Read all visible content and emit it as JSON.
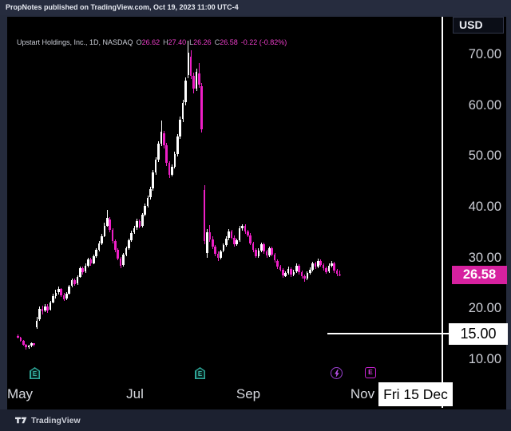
{
  "header": {
    "publish_bar": "PropNotes published on TradingView.com, Oct 19, 2023 11:00 UTC-4"
  },
  "legend": {
    "title": "Upstart Holdings, Inc., 1D, NASDAQ",
    "ohlc": [
      {
        "k": "O",
        "v": "26.62"
      },
      {
        "k": "H",
        "v": "27.40"
      },
      {
        "k": "L",
        "v": "26.26"
      },
      {
        "k": "C",
        "v": "26.58"
      }
    ],
    "change": "-0.22 (-0.82%)"
  },
  "price_axis": {
    "currency": "USD",
    "ticks": [
      {
        "label": "70.00",
        "price": 70
      },
      {
        "label": "60.00",
        "price": 60
      },
      {
        "label": "50.00",
        "price": 50
      },
      {
        "label": "40.00",
        "price": 40
      },
      {
        "label": "30.00",
        "price": 30
      },
      {
        "label": "20.00",
        "price": 20
      },
      {
        "label": "10.00",
        "price": 10
      }
    ],
    "last_price_badge": {
      "label": "26.58",
      "price": 26.58
    },
    "target_badge": {
      "label": "15.00",
      "price": 15
    }
  },
  "time_axis": {
    "labels": [
      {
        "label": "May",
        "x": 16
      },
      {
        "label": "Jul",
        "x": 160
      },
      {
        "label": "Sep",
        "x": 302
      },
      {
        "label": "Nov",
        "x": 445
      }
    ],
    "date_badge": {
      "label": "Fri 15 Dec"
    }
  },
  "chart_markers": [
    {
      "type": "earnings-past",
      "label": "E",
      "x": 35
    },
    {
      "type": "earnings-past",
      "label": "E",
      "x": 242
    },
    {
      "type": "event-lightning",
      "label": "",
      "x": 412
    },
    {
      "type": "earnings-upcoming",
      "label": "E",
      "x": 455
    }
  ],
  "footer": {
    "logo_text": "TradingView"
  },
  "colors": {
    "up_candle": "#ffffff",
    "down_candle": "#ee1fc6",
    "last_price_badge_bg": "#d6219f",
    "target_line": "#ffffff",
    "earnings_past": "#2fa99b",
    "event_purple": "#9b3fd1",
    "earnings_upcoming": "#cb22d6"
  },
  "chart_data": {
    "type": "candlestick",
    "symbol": "Upstart Holdings, Inc.",
    "interval": "1D",
    "exchange": "NASDAQ",
    "currency": "USD",
    "title": "UPST daily candles, May 2023 - Oct 19 2023",
    "ylabel": "USD",
    "ylim": [
      5.5,
      77.2
    ],
    "x_months": [
      "May",
      "Jul",
      "Sep",
      "Nov"
    ],
    "last_ohlc": {
      "open": 26.62,
      "high": 27.4,
      "low": 26.26,
      "close": 26.58,
      "change": -0.22,
      "change_pct": -0.82
    },
    "target_line": {
      "price": 15.0,
      "label": "15.00",
      "date_label": "Fri 15 Dec"
    },
    "legend_position": "top-left",
    "grid": false,
    "candles": [
      [
        14.6,
        14.8,
        14.0,
        14.2
      ],
      [
        14.2,
        14.4,
        13.4,
        13.6
      ],
      [
        13.6,
        13.8,
        12.7,
        12.9
      ],
      [
        12.9,
        13.0,
        11.9,
        12.3
      ],
      [
        12.3,
        12.9,
        12.1,
        12.6
      ],
      [
        12.6,
        13.3,
        12.4,
        13.1
      ],
      [
        13.1,
        13.2,
        12.5,
        12.8
      ],
      [
        16.2,
        18.4,
        15.9,
        17.6
      ],
      [
        17.8,
        20.4,
        17.5,
        19.9
      ],
      [
        19.9,
        20.6,
        18.8,
        19.4
      ],
      [
        19.5,
        20.8,
        19.2,
        20.3
      ],
      [
        20.3,
        20.9,
        19.1,
        19.6
      ],
      [
        19.7,
        21.5,
        19.5,
        21.2
      ],
      [
        21.2,
        22.9,
        21.0,
        22.4
      ],
      [
        22.4,
        23.6,
        22.0,
        23.1
      ],
      [
        23.2,
        24.3,
        22.8,
        23.8
      ],
      [
        23.8,
        24.0,
        22.3,
        22.6
      ],
      [
        22.6,
        23.1,
        21.4,
        21.8
      ],
      [
        21.9,
        23.2,
        21.6,
        22.9
      ],
      [
        22.9,
        24.6,
        22.7,
        24.3
      ],
      [
        24.4,
        25.9,
        24.1,
        25.6
      ],
      [
        25.6,
        25.9,
        24.4,
        24.8
      ],
      [
        24.9,
        26.5,
        24.6,
        26.2
      ],
      [
        26.2,
        28.3,
        26.0,
        27.9
      ],
      [
        27.9,
        28.2,
        26.7,
        27.1
      ],
      [
        27.2,
        28.8,
        27.0,
        28.4
      ],
      [
        28.4,
        30.0,
        28.1,
        29.6
      ],
      [
        29.6,
        29.9,
        28.3,
        28.8
      ],
      [
        28.9,
        30.6,
        28.6,
        30.2
      ],
      [
        30.2,
        31.9,
        30.0,
        31.5
      ],
      [
        31.5,
        33.2,
        31.2,
        32.8
      ],
      [
        32.8,
        34.6,
        32.5,
        34.2
      ],
      [
        34.2,
        36.8,
        34.0,
        36.3
      ],
      [
        36.3,
        39.4,
        36.0,
        37.8
      ],
      [
        37.5,
        37.9,
        35.0,
        35.4
      ],
      [
        35.4,
        35.7,
        32.8,
        33.2
      ],
      [
        33.2,
        33.6,
        31.1,
        31.5
      ],
      [
        31.5,
        31.8,
        29.4,
        29.8
      ],
      [
        29.8,
        30.1,
        27.9,
        28.4
      ],
      [
        28.5,
        30.9,
        28.2,
        30.6
      ],
      [
        30.6,
        32.2,
        30.3,
        31.8
      ],
      [
        31.9,
        33.8,
        31.6,
        33.4
      ],
      [
        33.4,
        35.3,
        33.1,
        34.9
      ],
      [
        35.0,
        36.2,
        34.6,
        35.8
      ],
      [
        35.9,
        37.6,
        35.5,
        37.2
      ],
      [
        37.2,
        37.5,
        35.7,
        36.1
      ],
      [
        36.2,
        38.8,
        35.9,
        38.4
      ],
      [
        38.4,
        40.6,
        38.1,
        40.2
      ],
      [
        40.2,
        42.2,
        39.8,
        41.8
      ],
      [
        41.8,
        43.9,
        41.4,
        43.5
      ],
      [
        43.6,
        47.3,
        43.2,
        46.8
      ],
      [
        46.8,
        49.8,
        46.3,
        49.2
      ],
      [
        49.3,
        52.9,
        48.8,
        52.4
      ],
      [
        52.4,
        57.0,
        51.9,
        54.8
      ],
      [
        54.5,
        55.0,
        51.5,
        52.1
      ],
      [
        52.1,
        52.6,
        48.0,
        48.6
      ],
      [
        48.6,
        49.0,
        45.6,
        46.2
      ],
      [
        46.3,
        48.4,
        45.9,
        47.9
      ],
      [
        47.9,
        50.8,
        47.5,
        50.3
      ],
      [
        50.3,
        54.3,
        49.9,
        53.8
      ],
      [
        53.8,
        57.8,
        53.3,
        57.2
      ],
      [
        57.2,
        61.0,
        56.6,
        60.4
      ],
      [
        60.5,
        65.4,
        60.0,
        64.8
      ],
      [
        66.0,
        72.6,
        65.2,
        70.4
      ],
      [
        69.5,
        70.8,
        65.1,
        65.8
      ],
      [
        65.8,
        66.4,
        62.3,
        63.2
      ],
      [
        63.3,
        67.2,
        62.8,
        66.5
      ],
      [
        66.2,
        68.3,
        63.4,
        64.1
      ],
      [
        63.8,
        64.4,
        54.6,
        55.3
      ],
      [
        43.3,
        44.2,
        32.6,
        33.2
      ],
      [
        30.8,
        35.6,
        29.9,
        35.0
      ],
      [
        35.0,
        36.4,
        33.0,
        33.5
      ],
      [
        33.5,
        34.2,
        31.6,
        32.1
      ],
      [
        32.1,
        32.5,
        30.3,
        30.8
      ],
      [
        30.8,
        31.2,
        29.3,
        29.9
      ],
      [
        29.9,
        31.6,
        29.6,
        31.2
      ],
      [
        31.3,
        32.8,
        31.0,
        32.4
      ],
      [
        32.4,
        34.2,
        32.1,
        33.8
      ],
      [
        33.8,
        35.6,
        33.4,
        35.2
      ],
      [
        35.2,
        35.5,
        33.5,
        33.9
      ],
      [
        33.9,
        34.3,
        32.2,
        32.6
      ],
      [
        32.6,
        33.8,
        32.3,
        33.4
      ],
      [
        33.4,
        36.2,
        33.1,
        35.8
      ],
      [
        35.8,
        36.6,
        35.2,
        36.2
      ],
      [
        36.2,
        36.5,
        34.7,
        35.1
      ],
      [
        35.1,
        35.4,
        34.0,
        34.4
      ],
      [
        34.4,
        34.8,
        32.4,
        32.8
      ],
      [
        32.8,
        33.1,
        31.1,
        31.5
      ],
      [
        31.5,
        31.8,
        29.9,
        30.2
      ],
      [
        30.2,
        31.8,
        30.0,
        31.4
      ],
      [
        31.4,
        33.0,
        31.1,
        32.6
      ],
      [
        32.6,
        32.9,
        30.8,
        31.2
      ],
      [
        31.2,
        31.5,
        30.0,
        30.4
      ],
      [
        30.4,
        32.2,
        30.1,
        31.8
      ],
      [
        31.8,
        32.1,
        30.2,
        30.6
      ],
      [
        30.6,
        30.9,
        29.0,
        29.4
      ],
      [
        29.4,
        29.7,
        27.8,
        28.2
      ],
      [
        28.2,
        28.5,
        27.2,
        27.6
      ],
      [
        27.6,
        27.9,
        26.0,
        26.4
      ],
      [
        26.4,
        27.3,
        26.1,
        26.9
      ],
      [
        26.9,
        28.2,
        26.6,
        27.8
      ],
      [
        27.8,
        28.1,
        26.2,
        26.6
      ],
      [
        26.6,
        27.6,
        26.3,
        27.2
      ],
      [
        27.2,
        28.8,
        26.9,
        28.4
      ],
      [
        28.4,
        28.7,
        26.7,
        27.1
      ],
      [
        27.1,
        27.4,
        25.9,
        26.4
      ],
      [
        26.4,
        26.7,
        25.3,
        25.8
      ],
      [
        25.8,
        27.3,
        25.5,
        26.9
      ],
      [
        26.9,
        28.0,
        26.6,
        27.6
      ],
      [
        27.6,
        29.2,
        27.3,
        28.8
      ],
      [
        28.8,
        29.1,
        27.8,
        28.2
      ],
      [
        28.2,
        29.8,
        27.9,
        29.4
      ],
      [
        29.4,
        29.7,
        28.2,
        28.6
      ],
      [
        28.6,
        28.9,
        27.5,
        27.9
      ],
      [
        27.9,
        28.2,
        26.8,
        27.2
      ],
      [
        27.2,
        28.8,
        26.9,
        28.4
      ],
      [
        28.4,
        29.3,
        28.1,
        28.9
      ],
      [
        28.9,
        29.1,
        27.0,
        27.4
      ],
      [
        27.4,
        27.7,
        26.3,
        26.8
      ],
      [
        26.62,
        27.4,
        26.26,
        26.58
      ]
    ]
  }
}
